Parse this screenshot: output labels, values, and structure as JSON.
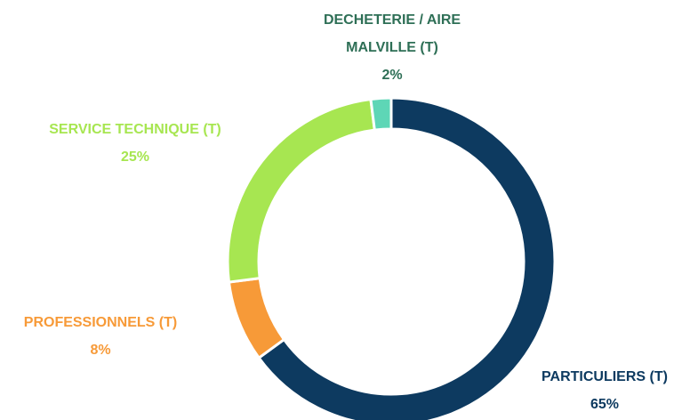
{
  "chart_data": {
    "type": "donut",
    "categories": [
      "PARTICULIERS (T)",
      "PROFESSIONNELS (T)",
      "SERVICE TECHNIQUE (T)",
      "DECHETERIE / AIRE MALVILLE (T)"
    ],
    "values": [
      65,
      8,
      25,
      2
    ],
    "value_labels": [
      "65%",
      "8%",
      "25%",
      "2%"
    ],
    "colors": [
      "#0d3a60",
      "#f79a38",
      "#a7e651",
      "#5ed6b6"
    ],
    "label_colors": [
      "#0d3a60",
      "#f79a38",
      "#a7e651",
      "#2e6f56"
    ]
  }
}
